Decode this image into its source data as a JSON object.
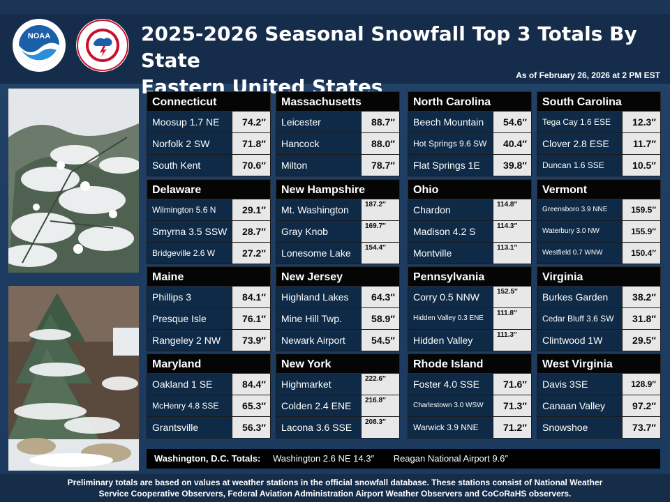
{
  "header": {
    "title_line1": "2025-2026 Seasonal Snowfall Top 3 Totals By State",
    "title_line2": "Eastern United States",
    "as_of": "As of February 26, 2026  at 2 PM EST"
  },
  "logos": {
    "noaa_text": "NOAA",
    "noaa_ring": "NATIONAL OCEANIC AND ATMOSPHERIC ADMINISTRATION · U.S. DEPARTMENT OF COMMERCE",
    "nws_ring": "NATIONAL WEATHER SERVICE"
  },
  "states": [
    {
      "name": "Connecticut",
      "rows": [
        {
          "loc": "Moosup 1.7 NE",
          "val": "74.2″"
        },
        {
          "loc": "Norfolk 2 SW",
          "val": "71.8″"
        },
        {
          "loc": "South Kent",
          "val": "70.6″"
        }
      ]
    },
    {
      "name": "Massachusetts",
      "rows": [
        {
          "loc": "Leicester",
          "val": "88.7″"
        },
        {
          "loc": "Hancock",
          "val": "88.0″"
        },
        {
          "loc": "Milton",
          "val": "78.7″"
        }
      ]
    },
    {
      "name": "North Carolina",
      "rows": [
        {
          "loc": "Beech Mountain",
          "val": "54.6″"
        },
        {
          "loc": "Hot Springs 9.6 SW",
          "val": "40.4″"
        },
        {
          "loc": "Flat Springs 1E",
          "val": "39.8″"
        }
      ]
    },
    {
      "name": "South Carolina",
      "rows": [
        {
          "loc": "Tega Cay 1.6 ESE",
          "val": "12.3″"
        },
        {
          "loc": "Clover 2.8 ESE",
          "val": "11.7″"
        },
        {
          "loc": "Duncan 1.6 SSE",
          "val": "10.5″"
        }
      ]
    },
    {
      "name": "Delaware",
      "rows": [
        {
          "loc": "Wilmington  5.6 N",
          "val": "29.1″"
        },
        {
          "loc": "Smyrna 3.5 SSW",
          "val": "28.7″"
        },
        {
          "loc": "Bridgeville  2.6 W",
          "val": "27.2″"
        }
      ]
    },
    {
      "name": "New Hampshire",
      "rows": [
        {
          "loc": "Mt. Washington",
          "val": "187.2″"
        },
        {
          "loc": "Gray Knob",
          "val": "169.7″"
        },
        {
          "loc": "Lonesome Lake",
          "val": "154.4″"
        }
      ]
    },
    {
      "name": "Ohio",
      "rows": [
        {
          "loc": "Chardon",
          "val": "114.8″"
        },
        {
          "loc": "Madison 4.2 S",
          "val": "114.3″"
        },
        {
          "loc": "Montville",
          "val": "113.1″"
        }
      ]
    },
    {
      "name": "Vermont",
      "rows": [
        {
          "loc": "Greensboro 3.9 NNE",
          "val": "159.5″"
        },
        {
          "loc": "Waterbury 3.0 NW",
          "val": "155.9″"
        },
        {
          "loc": "Westfield 0.7 WNW",
          "val": "150.4″"
        }
      ]
    },
    {
      "name": "Maine",
      "rows": [
        {
          "loc": "Phillips 3",
          "val": "84.1″"
        },
        {
          "loc": "Presque Isle",
          "val": "76.1″"
        },
        {
          "loc": "Rangeley 2 NW",
          "val": "73.9″"
        }
      ]
    },
    {
      "name": "New Jersey",
      "rows": [
        {
          "loc": "Highland Lakes",
          "val": "64.3″"
        },
        {
          "loc": "Mine Hill Twp.",
          "val": "58.9″"
        },
        {
          "loc": "Newark Airport",
          "val": "54.5″"
        }
      ]
    },
    {
      "name": "Pennsylvania",
      "rows": [
        {
          "loc": "Corry 0.5 NNW",
          "val": "152.5″"
        },
        {
          "loc": "Hidden Valley 0.3 ENE",
          "val": "111.8″"
        },
        {
          "loc": "Hidden Valley",
          "val": "111.3″"
        }
      ]
    },
    {
      "name": "Virginia",
      "rows": [
        {
          "loc": "Burkes Garden",
          "val": "38.2″"
        },
        {
          "loc": "Cedar Bluff 3.6 SW",
          "val": "31.8″"
        },
        {
          "loc": "Clintwood 1W",
          "val": "29.5″"
        }
      ]
    },
    {
      "name": "Maryland",
      "rows": [
        {
          "loc": "Oakland 1 SE",
          "val": "84.4″"
        },
        {
          "loc": "McHenry 4.8 SSE",
          "val": "65.3″"
        },
        {
          "loc": "Grantsville",
          "val": "56.3″"
        }
      ]
    },
    {
      "name": "New York",
      "rows": [
        {
          "loc": "Highmarket",
          "val": "222.6″"
        },
        {
          "loc": "Colden 2.4 ENE",
          "val": "216.8″"
        },
        {
          "loc": "Lacona 3.6 SSE",
          "val": "208.3″"
        }
      ]
    },
    {
      "name": "Rhode Island",
      "rows": [
        {
          "loc": "Foster 4.0 SSE",
          "val": "71.6″"
        },
        {
          "loc": "Charlestown 3.0 WSW",
          "val": "71.3″"
        },
        {
          "loc": "Warwick 3.9 NNE",
          "val": "71.2″"
        }
      ]
    },
    {
      "name": "West Virginia",
      "rows": [
        {
          "loc": "Davis 3SE",
          "val": "128.9″"
        },
        {
          "loc": "Canaan Valley",
          "val": "97.2″"
        },
        {
          "loc": "Snowshoe",
          "val": "73.7″"
        }
      ]
    }
  ],
  "dc": {
    "label": "Washington, D.C. Totals:",
    "item1": "Washington 2.6 NE 14.3″",
    "item2": "Reagan National Airport 9.6″"
  },
  "footer": {
    "line1": "Preliminary totals are based on values at weather stations in the official snowfall database. These stations consist of National Weather",
    "line2": "Service Cooperative Observers, Federal Aviation Administration Airport Weather Observers and CoCoRaHS observers."
  }
}
